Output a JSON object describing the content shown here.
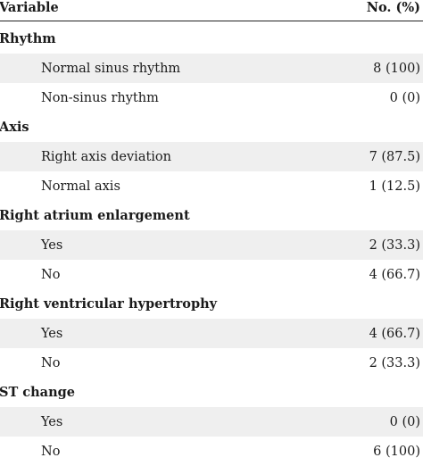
{
  "header": {
    "variable": "Variable",
    "value": "No. (%)"
  },
  "groups": [
    {
      "title": "Rhythm",
      "items": [
        {
          "label": "Normal sinus rhythm",
          "value": "8 (100)"
        },
        {
          "label": "Non-sinus rhythm",
          "value": "0 (0)"
        }
      ]
    },
    {
      "title": "Axis",
      "items": [
        {
          "label": "Right axis deviation",
          "value": "7 (87.5)"
        },
        {
          "label": "Normal axis",
          "value": "1 (12.5)"
        }
      ]
    },
    {
      "title": "Right atrium enlargement",
      "items": [
        {
          "label": "Yes",
          "value": "2 (33.3)"
        },
        {
          "label": "No",
          "value": "4 (66.7)"
        }
      ]
    },
    {
      "title": "Right ventricular hypertrophy",
      "items": [
        {
          "label": "Yes",
          "value": "4 (66.7)"
        },
        {
          "label": "No",
          "value": "2 (33.3)"
        }
      ]
    },
    {
      "title": "ST change",
      "items": [
        {
          "label": "Yes",
          "value": "0 (0)"
        },
        {
          "label": "No",
          "value": "6 (100)"
        }
      ]
    }
  ]
}
